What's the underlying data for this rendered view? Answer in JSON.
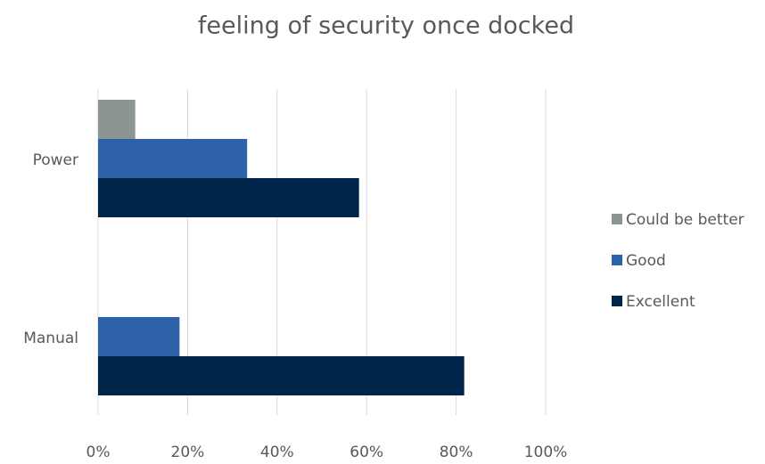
{
  "chart_data": {
    "type": "hbar",
    "title": "feeling of security once docked",
    "categories": [
      "Power",
      "Manual"
    ],
    "series": [
      {
        "name": "Could be better",
        "color": "#8c9590",
        "values": [
          8.3,
          0
        ]
      },
      {
        "name": "Good",
        "color": "#2e62a8",
        "values": [
          33.3,
          18.2
        ]
      },
      {
        "name": "Excellent",
        "color": "#00254a",
        "values": [
          58.3,
          81.8
        ]
      }
    ],
    "xlim": [
      0,
      100
    ],
    "xticks": [
      {
        "value": 0,
        "label": "0%"
      },
      {
        "value": 20,
        "label": "20%"
      },
      {
        "value": 40,
        "label": "40%"
      },
      {
        "value": 60,
        "label": "60%"
      },
      {
        "value": 80,
        "label": "80%"
      },
      {
        "value": 100,
        "label": "100%"
      }
    ],
    "grid": true,
    "legend": "right"
  }
}
